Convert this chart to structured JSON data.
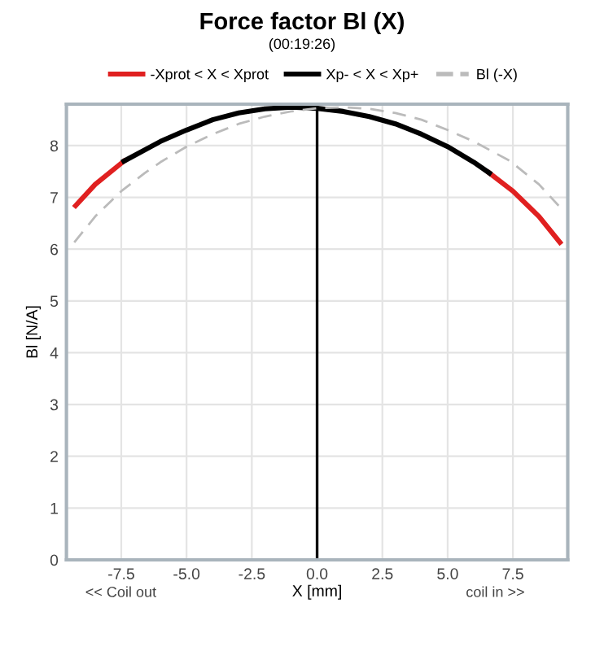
{
  "chart_data": {
    "type": "line",
    "title": "Force factor Bl (X)",
    "subtitle": "(00:19:26)",
    "xlabel": "X [mm]",
    "ylabel": "Bl [N/A]",
    "annotations": [
      "<< Coil out",
      "coil in >>"
    ],
    "series": [
      {
        "name": "-Xprot < X < Xprot",
        "color": "#e02020",
        "x": [
          -9.25,
          -8.5,
          -7.4,
          null,
          6.6,
          7.5,
          8.5,
          9.3
        ],
        "values": [
          6.84,
          7.25,
          7.7,
          null,
          7.47,
          7.12,
          6.63,
          6.13
        ]
      },
      {
        "name": "Xp- < X < Xp+",
        "color": "#000000",
        "x": [
          -7.4,
          -6,
          -5,
          -4,
          -3,
          -2,
          -1,
          0,
          1,
          2,
          3,
          4,
          5,
          6,
          6.6
        ],
        "values": [
          7.7,
          8.08,
          8.3,
          8.5,
          8.63,
          8.71,
          8.74,
          8.72,
          8.66,
          8.56,
          8.42,
          8.22,
          7.98,
          7.68,
          7.47
        ]
      },
      {
        "name": "Bl (-X)",
        "color": "#bbbbbb",
        "line_style": "dashed",
        "x": [
          -9.3,
          -8.5,
          -7.5,
          -6.6,
          -6,
          -5,
          -4,
          -3,
          -2,
          -1,
          0,
          1,
          2,
          3,
          4,
          5,
          6,
          7.4,
          8.5,
          9.25
        ],
        "values": [
          6.13,
          6.63,
          7.12,
          7.47,
          7.68,
          7.98,
          8.22,
          8.42,
          8.56,
          8.66,
          8.72,
          8.74,
          8.71,
          8.63,
          8.5,
          8.3,
          8.08,
          7.7,
          7.25,
          6.84
        ]
      }
    ],
    "ref_lines": [
      {
        "axis": "x",
        "value": 0,
        "color": "#000000"
      }
    ],
    "xlim": [
      -9.6,
      9.6
    ],
    "xticks": [
      -7.5,
      {
        "value": -5,
        "label": "-5.0"
      },
      -2.5,
      {
        "value": 0,
        "label": "0.0"
      },
      2.5,
      {
        "value": 5,
        "label": "5.0"
      },
      7.5
    ],
    "ylim": [
      0,
      8.8
    ],
    "yticks": [
      0,
      1,
      2,
      3,
      4,
      5,
      6,
      7,
      8
    ],
    "grid": true,
    "legend": "top",
    "marker": "none",
    "line_style": "solid"
  }
}
